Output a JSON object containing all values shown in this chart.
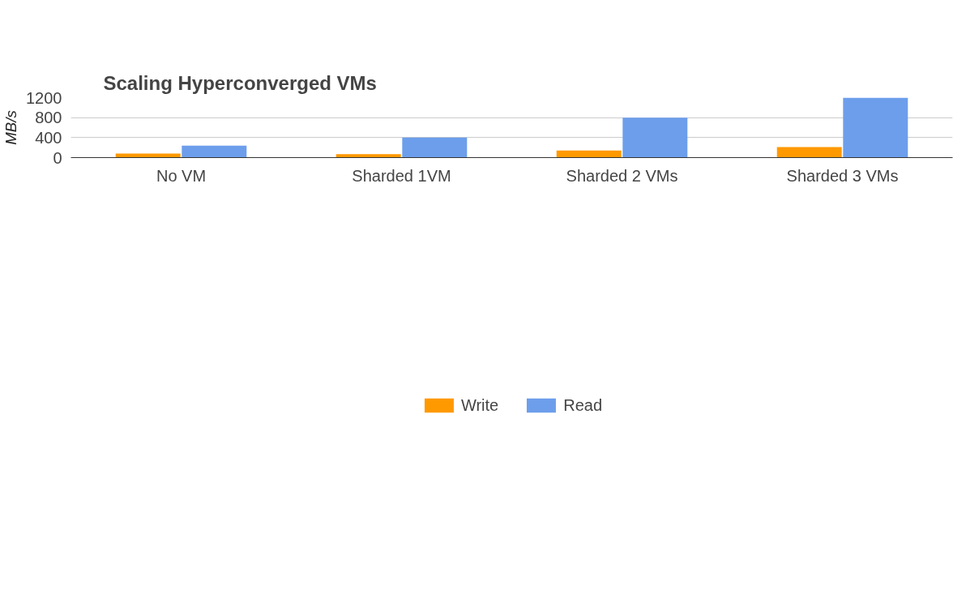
{
  "chart_data": {
    "type": "bar",
    "title": "Scaling Hyperconverged VMs",
    "ylabel": "MB/s",
    "categories": [
      "No VM",
      "Sharded 1VM",
      "Sharded 2 VMs",
      "Sharded 3 VMs"
    ],
    "series": [
      {
        "name": "Write",
        "color": "#ff9900",
        "values": [
          80,
          70,
          140,
          210
        ]
      },
      {
        "name": "Read",
        "color": "#6d9eeb",
        "values": [
          240,
          400,
          800,
          1200
        ]
      }
    ],
    "ylim": [
      0,
      1200
    ],
    "yticks": [
      0,
      400,
      800,
      1200
    ],
    "grid": "y",
    "legend": "bottom"
  }
}
